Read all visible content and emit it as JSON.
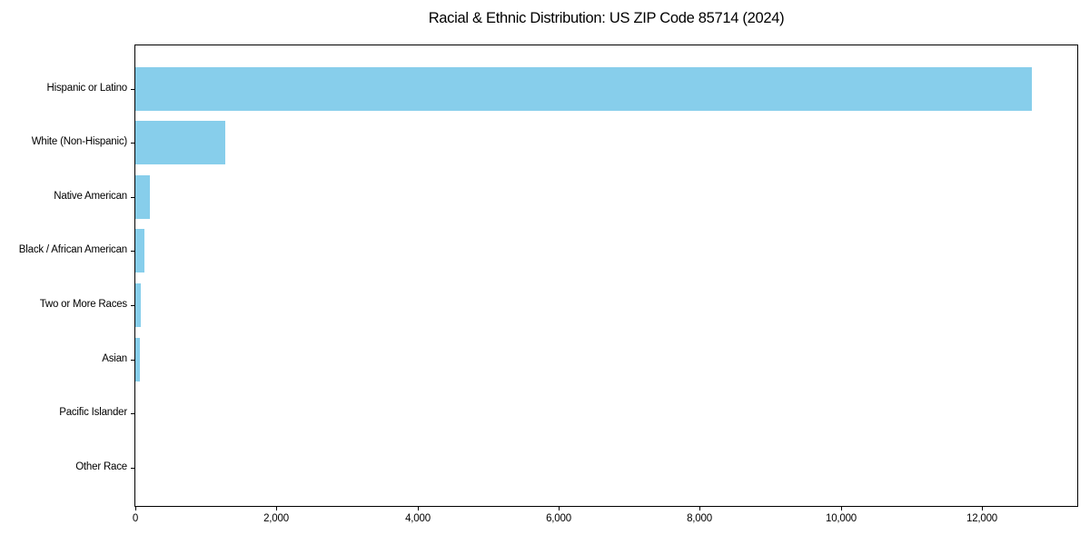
{
  "chart_data": {
    "type": "bar",
    "orientation": "horizontal",
    "title": "Racial & Ethnic Distribution: US ZIP Code 85714 (2024)",
    "categories": [
      "Hispanic or Latino",
      "White (Non-Hispanic)",
      "Native American",
      "Black / African American",
      "Two or More Races",
      "Asian",
      "Pacific Islander",
      "Other Race"
    ],
    "values": [
      12700,
      1280,
      210,
      130,
      75,
      70,
      0,
      0
    ],
    "xlabel": "",
    "ylabel": "",
    "xlim": [
      0,
      13350
    ],
    "xtick_values": [
      0,
      2000,
      4000,
      6000,
      8000,
      10000,
      12000
    ],
    "xtick_labels": [
      "0",
      "2,000",
      "4,000",
      "6,000",
      "8,000",
      "10,000",
      "12,000"
    ],
    "grid": false,
    "legend": "none",
    "bar_color": "#87CEEB",
    "frame_color": "#000000",
    "text_color": "#000000",
    "background_color": "#ffffff"
  }
}
